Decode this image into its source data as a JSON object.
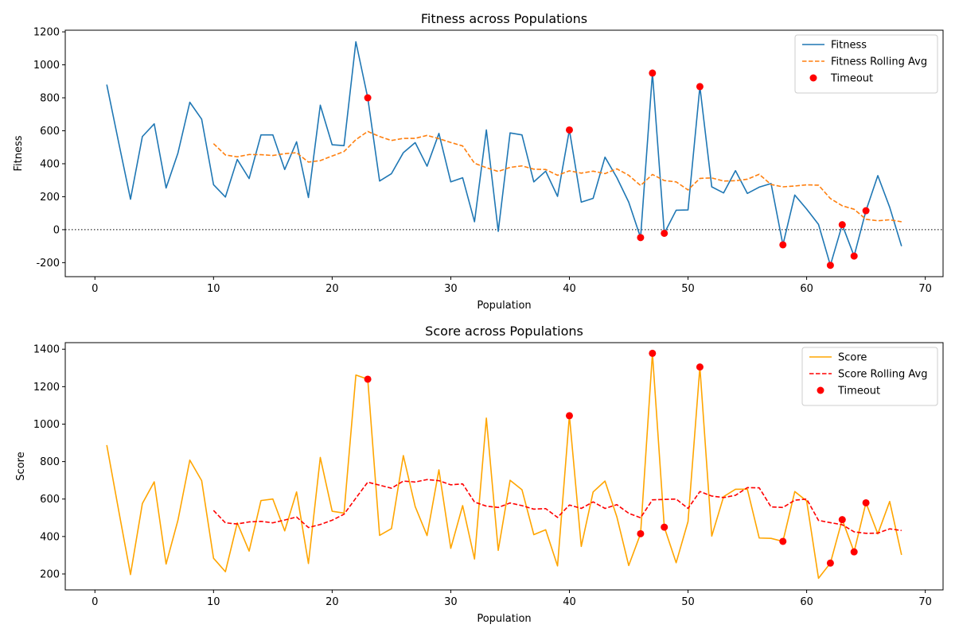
{
  "chart_data": [
    {
      "type": "line",
      "title": "Fitness across Populations",
      "xlabel": "Population",
      "ylabel": "Fitness",
      "xlim": [
        -2.5,
        71.5
      ],
      "ylim": [
        -285,
        1210
      ],
      "x_ticks": [
        0,
        10,
        20,
        30,
        40,
        50,
        60,
        70
      ],
      "y_ticks": [
        -200,
        0,
        200,
        400,
        600,
        800,
        1000,
        1200
      ],
      "grid": false,
      "legend_position": "top-right",
      "reference_line": {
        "y": 0,
        "style": "dotted",
        "color": "#000000"
      },
      "series": [
        {
          "name": "Fitness",
          "style": "solid",
          "color": "#1f77b4",
          "x": [
            1,
            2,
            3,
            4,
            5,
            6,
            7,
            8,
            9,
            10,
            11,
            12,
            13,
            14,
            15,
            16,
            17,
            18,
            19,
            20,
            21,
            22,
            23,
            24,
            25,
            26,
            27,
            28,
            29,
            30,
            31,
            32,
            33,
            34,
            35,
            36,
            37,
            38,
            39,
            40,
            41,
            42,
            43,
            44,
            45,
            46,
            47,
            48,
            49,
            50,
            51,
            52,
            53,
            54,
            55,
            56,
            57,
            58,
            59,
            60,
            61,
            62,
            63,
            64,
            65,
            66,
            67,
            68
          ],
          "values": [
            880,
            530,
            185,
            565,
            642,
            253,
            465,
            773,
            670,
            273,
            198,
            426,
            310,
            575,
            575,
            365,
            533,
            195,
            755,
            515,
            510,
            1140,
            800,
            295,
            340,
            467,
            528,
            385,
            584,
            290,
            315,
            48,
            605,
            -10,
            587,
            575,
            290,
            355,
            202,
            605,
            167,
            190,
            440,
            316,
            167,
            -48,
            950,
            -22,
            118,
            120,
            868,
            260,
            223,
            358,
            220,
            258,
            280,
            -92,
            210,
            125,
            32,
            -216,
            30,
            -160,
            115,
            328,
            136,
            -100
          ]
        },
        {
          "name": "Fitness Rolling Avg",
          "style": "dashed",
          "color": "#ff7f0e",
          "x": [
            10,
            11,
            12,
            13,
            14,
            15,
            16,
            17,
            18,
            19,
            20,
            21,
            22,
            23,
            24,
            25,
            26,
            27,
            28,
            29,
            30,
            31,
            32,
            33,
            34,
            35,
            36,
            37,
            38,
            39,
            40,
            41,
            42,
            43,
            44,
            45,
            46,
            47,
            48,
            49,
            50,
            51,
            52,
            53,
            54,
            55,
            56,
            57,
            58,
            59,
            60,
            61,
            62,
            63,
            64,
            65,
            66,
            67,
            68
          ],
          "values": [
            522,
            453,
            442,
            456,
            455,
            450,
            461,
            467,
            410,
            419,
            447,
            474,
            546,
            596,
            565,
            541,
            554,
            554,
            572,
            552,
            529,
            508,
            403,
            376,
            353,
            378,
            387,
            367,
            365,
            330,
            357,
            343,
            355,
            340,
            369,
            330,
            268,
            335,
            298,
            290,
            241,
            311,
            314,
            295,
            297,
            306,
            336,
            274,
            260,
            265,
            272,
            270,
            189,
            145,
            124,
            63,
            54,
            60,
            48
          ]
        }
      ],
      "scatter": {
        "name": "Timeout",
        "color": "#ff0000",
        "x": [
          23,
          40,
          46,
          47,
          48,
          51,
          58,
          62,
          63,
          64,
          65
        ],
        "values": [
          800,
          605,
          -48,
          950,
          -22,
          868,
          -92,
          -216,
          30,
          -160,
          115
        ]
      }
    },
    {
      "type": "line",
      "title": "Score across Populations",
      "xlabel": "Population",
      "ylabel": "Score",
      "xlim": [
        -2.5,
        71.5
      ],
      "ylim": [
        115,
        1435
      ],
      "x_ticks": [
        0,
        10,
        20,
        30,
        40,
        50,
        60,
        70
      ],
      "y_ticks": [
        200,
        400,
        600,
        800,
        1000,
        1200,
        1400
      ],
      "grid": false,
      "legend_position": "top-right",
      "series": [
        {
          "name": "Score",
          "style": "solid",
          "color": "#ffa500",
          "x": [
            1,
            2,
            3,
            4,
            5,
            6,
            7,
            8,
            9,
            10,
            11,
            12,
            13,
            14,
            15,
            16,
            17,
            18,
            19,
            20,
            21,
            22,
            23,
            24,
            25,
            26,
            27,
            28,
            29,
            30,
            31,
            32,
            33,
            34,
            35,
            36,
            37,
            38,
            39,
            40,
            41,
            42,
            43,
            44,
            45,
            46,
            47,
            48,
            49,
            50,
            51,
            52,
            53,
            54,
            55,
            56,
            57,
            58,
            59,
            60,
            61,
            62,
            63,
            64,
            65,
            66,
            67,
            68
          ],
          "values": [
            888,
            540,
            197,
            576,
            692,
            253,
            487,
            808,
            698,
            284,
            212,
            473,
            322,
            592,
            600,
            430,
            638,
            256,
            822,
            535,
            525,
            1262,
            1240,
            406,
            442,
            832,
            560,
            405,
            756,
            337,
            565,
            280,
            1032,
            326,
            700,
            650,
            410,
            436,
            243,
            1045,
            347,
            638,
            696,
            505,
            245,
            415,
            1378,
            450,
            260,
            480,
            1305,
            402,
            613,
            652,
            653,
            392,
            390,
            374,
            640,
            590,
            177,
            258,
            490,
            318,
            580,
            414,
            587,
            302
          ]
        },
        {
          "name": "Score Rolling Avg",
          "style": "dashed",
          "color": "#ff0000",
          "x": [
            10,
            11,
            12,
            13,
            14,
            15,
            16,
            17,
            18,
            19,
            20,
            21,
            22,
            23,
            24,
            25,
            26,
            27,
            28,
            29,
            30,
            31,
            32,
            33,
            34,
            35,
            36,
            37,
            38,
            39,
            40,
            41,
            42,
            43,
            44,
            45,
            46,
            47,
            48,
            49,
            50,
            51,
            52,
            53,
            54,
            55,
            56,
            57,
            58,
            59,
            60,
            61,
            62,
            63,
            64,
            65,
            66,
            67,
            68
          ],
          "values": [
            539,
            473,
            467,
            478,
            481,
            473,
            488,
            504,
            448,
            464,
            487,
            519,
            605,
            690,
            674,
            658,
            696,
            691,
            704,
            698,
            676,
            681,
            584,
            562,
            555,
            579,
            565,
            546,
            549,
            502,
            568,
            550,
            585,
            550,
            570,
            524,
            500,
            596,
            598,
            600,
            550,
            640,
            616,
            608,
            620,
            661,
            660,
            558,
            555,
            594,
            600,
            486,
            474,
            463,
            425,
            417,
            418,
            441,
            432
          ]
        }
      ],
      "scatter": {
        "name": "Timeout",
        "color": "#ff0000",
        "x": [
          23,
          40,
          46,
          47,
          48,
          51,
          58,
          62,
          63,
          64,
          65
        ],
        "values": [
          1240,
          1045,
          415,
          1378,
          450,
          1305,
          374,
          258,
          490,
          318,
          580
        ]
      }
    }
  ]
}
